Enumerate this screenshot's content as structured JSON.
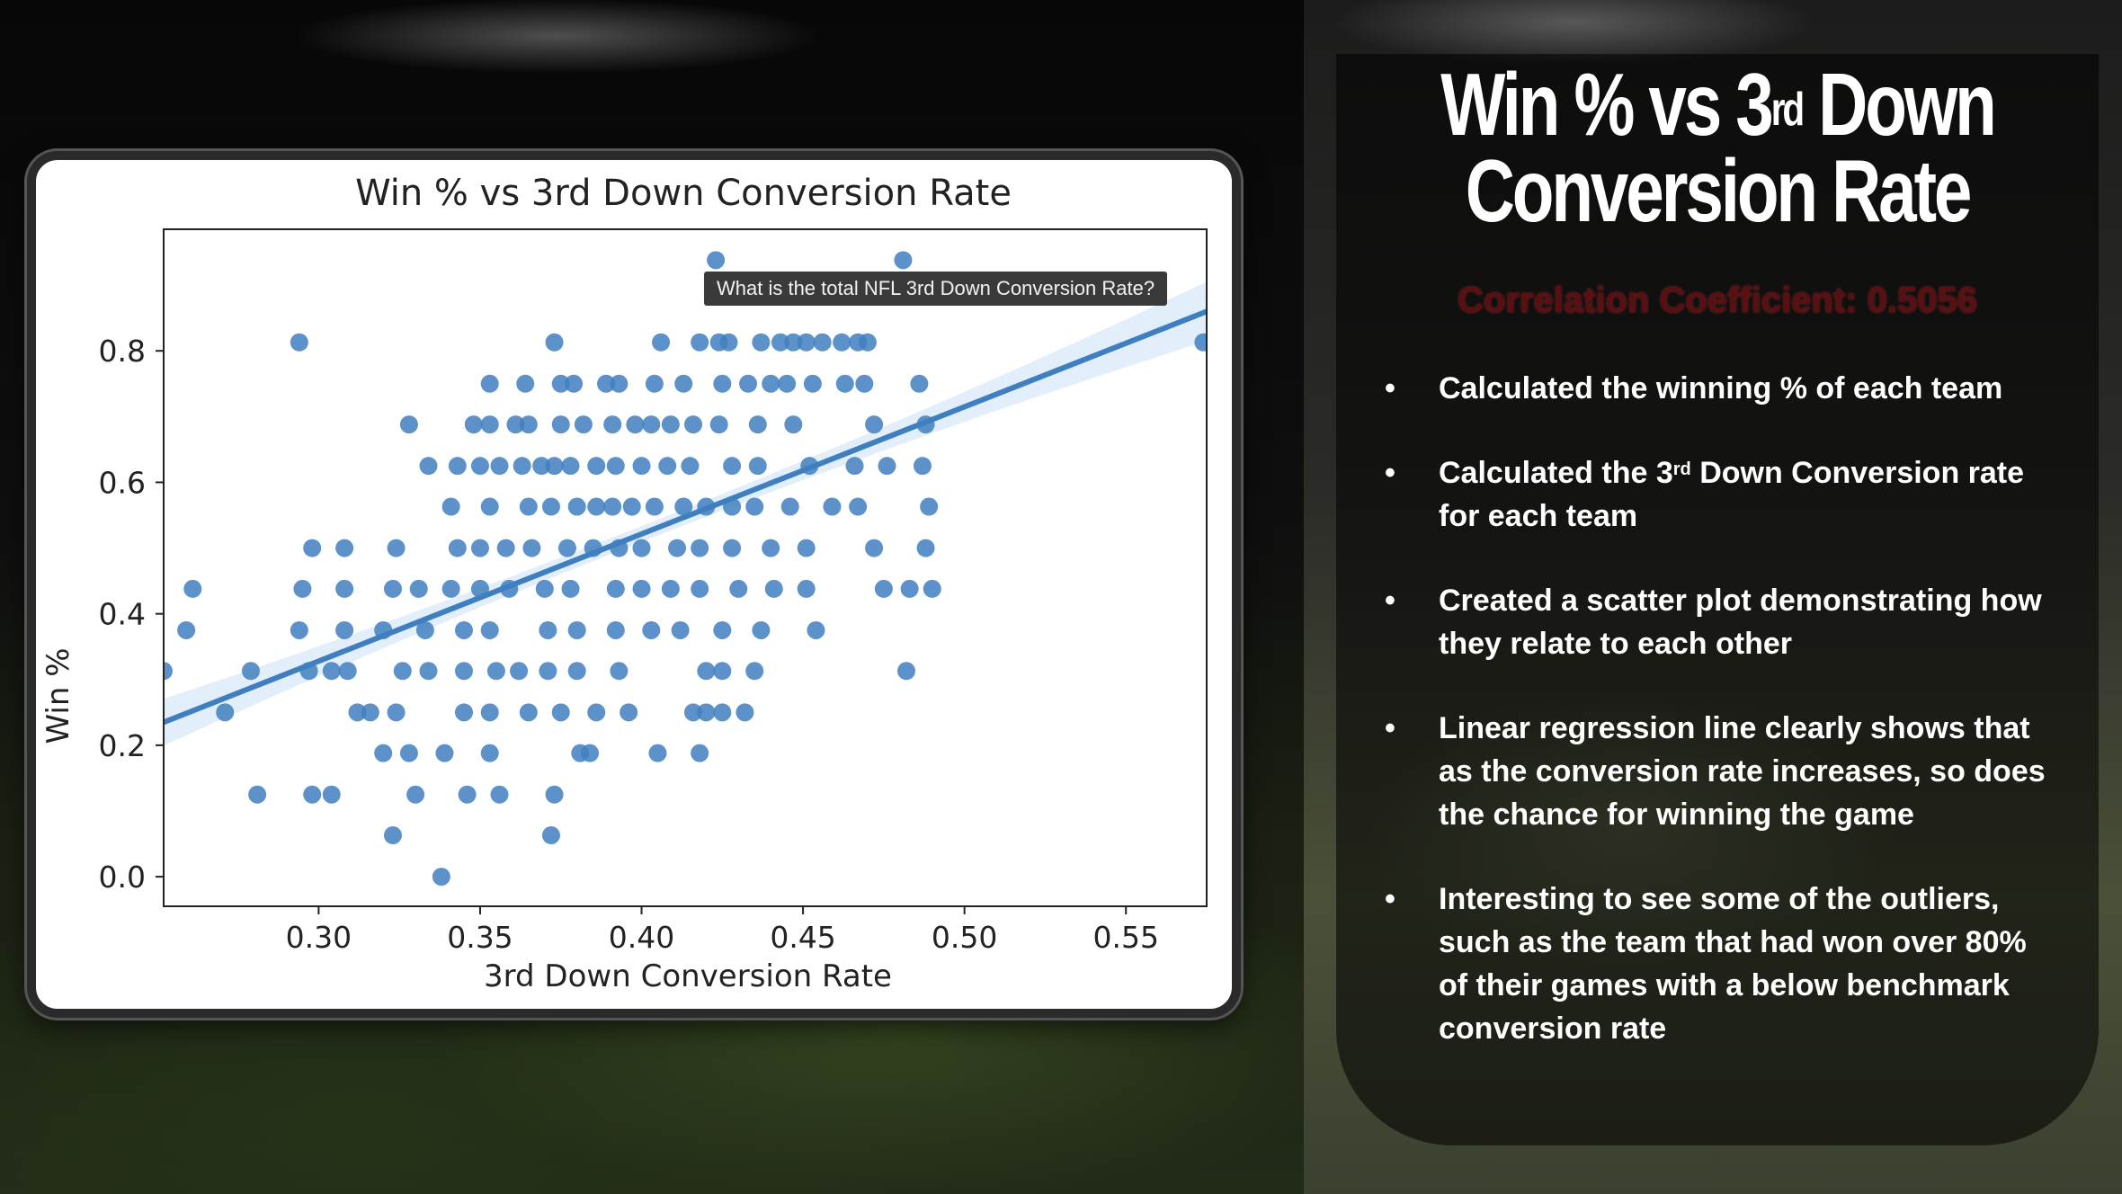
{
  "slide": {
    "title_part1": "Win % vs 3",
    "title_sup": "rd",
    "title_part2": " Down",
    "title_line2": "Conversion Rate",
    "correlation_text": "Correlation Coefficient: 0.5056",
    "bullets": [
      {
        "text": "Calculated the winning % of each team"
      },
      {
        "pre": "Calculated the 3",
        "sup": "rd",
        "post": " Down Conversion rate for each team"
      },
      {
        "text": "Created a scatter plot demonstrating how they relate to each other"
      },
      {
        "text": "Linear regression line clearly shows that as the conversion rate increases, so does the chance for winning the game"
      },
      {
        "text": "Interesting to see some of the outliers, such as the team that had won over 80% of their games with a below benchmark conversion rate"
      }
    ]
  },
  "tooltip": "What is the total NFL 3rd Down Conversion Rate?",
  "colors": {
    "point": "#3f7fc0",
    "line": "#3f7fc0",
    "band": "#cfe2f5"
  },
  "chart_data": {
    "type": "scatter",
    "title": "Win % vs 3rd Down Conversion Rate",
    "xlabel": "3rd Down Conversion Rate",
    "ylabel": "Win %",
    "xlim": [
      0.252,
      0.575
    ],
    "ylim": [
      -0.045,
      0.985
    ],
    "xticks": [
      "0.30",
      "0.35",
      "0.40",
      "0.45",
      "0.50",
      "0.55"
    ],
    "yticks": [
      "0.0",
      "0.2",
      "0.4",
      "0.6",
      "0.8"
    ],
    "regression": {
      "x": [
        0.252,
        0.575
      ],
      "y": [
        0.235,
        0.86
      ]
    },
    "points": [
      [
        0.423,
        0.938
      ],
      [
        0.481,
        0.938
      ],
      [
        0.294,
        0.813
      ],
      [
        0.373,
        0.813
      ],
      [
        0.406,
        0.813
      ],
      [
        0.418,
        0.813
      ],
      [
        0.424,
        0.813
      ],
      [
        0.427,
        0.813
      ],
      [
        0.437,
        0.813
      ],
      [
        0.443,
        0.813
      ],
      [
        0.447,
        0.813
      ],
      [
        0.451,
        0.813
      ],
      [
        0.456,
        0.813
      ],
      [
        0.462,
        0.813
      ],
      [
        0.467,
        0.813
      ],
      [
        0.47,
        0.813
      ],
      [
        0.574,
        0.813
      ],
      [
        0.353,
        0.75
      ],
      [
        0.364,
        0.75
      ],
      [
        0.375,
        0.75
      ],
      [
        0.379,
        0.75
      ],
      [
        0.389,
        0.75
      ],
      [
        0.393,
        0.75
      ],
      [
        0.404,
        0.75
      ],
      [
        0.413,
        0.75
      ],
      [
        0.425,
        0.75
      ],
      [
        0.433,
        0.75
      ],
      [
        0.44,
        0.75
      ],
      [
        0.445,
        0.75
      ],
      [
        0.453,
        0.75
      ],
      [
        0.463,
        0.75
      ],
      [
        0.469,
        0.75
      ],
      [
        0.486,
        0.75
      ],
      [
        0.328,
        0.688
      ],
      [
        0.348,
        0.688
      ],
      [
        0.353,
        0.688
      ],
      [
        0.361,
        0.688
      ],
      [
        0.365,
        0.688
      ],
      [
        0.375,
        0.688
      ],
      [
        0.382,
        0.688
      ],
      [
        0.391,
        0.688
      ],
      [
        0.398,
        0.688
      ],
      [
        0.403,
        0.688
      ],
      [
        0.409,
        0.688
      ],
      [
        0.416,
        0.688
      ],
      [
        0.424,
        0.688
      ],
      [
        0.436,
        0.688
      ],
      [
        0.447,
        0.688
      ],
      [
        0.472,
        0.688
      ],
      [
        0.488,
        0.688
      ],
      [
        0.334,
        0.625
      ],
      [
        0.343,
        0.625
      ],
      [
        0.35,
        0.625
      ],
      [
        0.356,
        0.625
      ],
      [
        0.363,
        0.625
      ],
      [
        0.369,
        0.625
      ],
      [
        0.373,
        0.625
      ],
      [
        0.378,
        0.625
      ],
      [
        0.386,
        0.625
      ],
      [
        0.392,
        0.625
      ],
      [
        0.4,
        0.625
      ],
      [
        0.408,
        0.625
      ],
      [
        0.415,
        0.625
      ],
      [
        0.428,
        0.625
      ],
      [
        0.436,
        0.625
      ],
      [
        0.452,
        0.625
      ],
      [
        0.466,
        0.625
      ],
      [
        0.476,
        0.625
      ],
      [
        0.487,
        0.625
      ],
      [
        0.341,
        0.563
      ],
      [
        0.353,
        0.563
      ],
      [
        0.365,
        0.563
      ],
      [
        0.372,
        0.563
      ],
      [
        0.38,
        0.563
      ],
      [
        0.386,
        0.563
      ],
      [
        0.391,
        0.563
      ],
      [
        0.397,
        0.563
      ],
      [
        0.404,
        0.563
      ],
      [
        0.413,
        0.563
      ],
      [
        0.42,
        0.563
      ],
      [
        0.428,
        0.563
      ],
      [
        0.435,
        0.563
      ],
      [
        0.446,
        0.563
      ],
      [
        0.459,
        0.563
      ],
      [
        0.467,
        0.563
      ],
      [
        0.489,
        0.563
      ],
      [
        0.298,
        0.5
      ],
      [
        0.308,
        0.5
      ],
      [
        0.324,
        0.5
      ],
      [
        0.343,
        0.5
      ],
      [
        0.35,
        0.5
      ],
      [
        0.358,
        0.5
      ],
      [
        0.366,
        0.5
      ],
      [
        0.377,
        0.5
      ],
      [
        0.385,
        0.5
      ],
      [
        0.393,
        0.5
      ],
      [
        0.4,
        0.5
      ],
      [
        0.411,
        0.5
      ],
      [
        0.418,
        0.5
      ],
      [
        0.428,
        0.5
      ],
      [
        0.44,
        0.5
      ],
      [
        0.451,
        0.5
      ],
      [
        0.472,
        0.5
      ],
      [
        0.488,
        0.5
      ],
      [
        0.261,
        0.438
      ],
      [
        0.295,
        0.438
      ],
      [
        0.308,
        0.438
      ],
      [
        0.323,
        0.438
      ],
      [
        0.331,
        0.438
      ],
      [
        0.341,
        0.438
      ],
      [
        0.35,
        0.438
      ],
      [
        0.359,
        0.438
      ],
      [
        0.37,
        0.438
      ],
      [
        0.378,
        0.438
      ],
      [
        0.392,
        0.438
      ],
      [
        0.4,
        0.438
      ],
      [
        0.409,
        0.438
      ],
      [
        0.418,
        0.438
      ],
      [
        0.43,
        0.438
      ],
      [
        0.441,
        0.438
      ],
      [
        0.451,
        0.438
      ],
      [
        0.475,
        0.438
      ],
      [
        0.483,
        0.438
      ],
      [
        0.49,
        0.438
      ],
      [
        0.259,
        0.375
      ],
      [
        0.294,
        0.375
      ],
      [
        0.308,
        0.375
      ],
      [
        0.32,
        0.375
      ],
      [
        0.333,
        0.375
      ],
      [
        0.345,
        0.375
      ],
      [
        0.353,
        0.375
      ],
      [
        0.371,
        0.375
      ],
      [
        0.38,
        0.375
      ],
      [
        0.392,
        0.375
      ],
      [
        0.403,
        0.375
      ],
      [
        0.412,
        0.375
      ],
      [
        0.425,
        0.375
      ],
      [
        0.437,
        0.375
      ],
      [
        0.454,
        0.375
      ],
      [
        0.252,
        0.313
      ],
      [
        0.279,
        0.313
      ],
      [
        0.297,
        0.313
      ],
      [
        0.304,
        0.313
      ],
      [
        0.309,
        0.313
      ],
      [
        0.326,
        0.313
      ],
      [
        0.334,
        0.313
      ],
      [
        0.345,
        0.313
      ],
      [
        0.355,
        0.313
      ],
      [
        0.362,
        0.313
      ],
      [
        0.371,
        0.313
      ],
      [
        0.38,
        0.313
      ],
      [
        0.393,
        0.313
      ],
      [
        0.42,
        0.313
      ],
      [
        0.425,
        0.313
      ],
      [
        0.435,
        0.313
      ],
      [
        0.482,
        0.313
      ],
      [
        0.271,
        0.25
      ],
      [
        0.312,
        0.25
      ],
      [
        0.316,
        0.25
      ],
      [
        0.324,
        0.25
      ],
      [
        0.345,
        0.25
      ],
      [
        0.353,
        0.25
      ],
      [
        0.365,
        0.25
      ],
      [
        0.375,
        0.25
      ],
      [
        0.386,
        0.25
      ],
      [
        0.396,
        0.25
      ],
      [
        0.416,
        0.25
      ],
      [
        0.42,
        0.25
      ],
      [
        0.425,
        0.25
      ],
      [
        0.432,
        0.25
      ],
      [
        0.32,
        0.188
      ],
      [
        0.328,
        0.188
      ],
      [
        0.339,
        0.188
      ],
      [
        0.353,
        0.188
      ],
      [
        0.381,
        0.188
      ],
      [
        0.384,
        0.188
      ],
      [
        0.405,
        0.188
      ],
      [
        0.418,
        0.188
      ],
      [
        0.281,
        0.125
      ],
      [
        0.298,
        0.125
      ],
      [
        0.304,
        0.125
      ],
      [
        0.33,
        0.125
      ],
      [
        0.346,
        0.125
      ],
      [
        0.356,
        0.125
      ],
      [
        0.373,
        0.125
      ],
      [
        0.323,
        0.063
      ],
      [
        0.372,
        0.063
      ],
      [
        0.338,
        0.0
      ]
    ]
  }
}
